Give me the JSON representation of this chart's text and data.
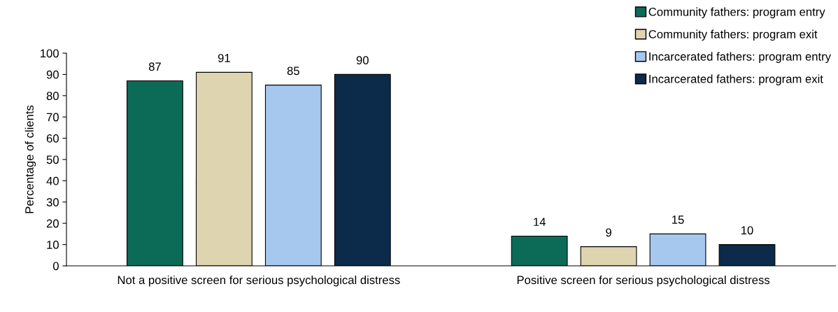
{
  "chart_data": {
    "type": "bar",
    "ylabel": "Percentage of clients",
    "categories": [
      "Not a positive screen for serious psychological distress",
      "Positive screen for serious psychological distress"
    ],
    "series": [
      {
        "name": "Community fathers: program entry",
        "color": "#0b6b57",
        "values": [
          87,
          14
        ]
      },
      {
        "name": "Community fathers: program exit",
        "color": "#ded4b0",
        "values": [
          91,
          9
        ]
      },
      {
        "name": "Incarcerated fathers: program entry",
        "color": "#a6c8ef",
        "values": [
          85,
          15
        ]
      },
      {
        "name": "Incarcerated fathers: program exit",
        "color": "#0c2a4a",
        "values": [
          90,
          10
        ]
      }
    ],
    "ylim": [
      0,
      100
    ],
    "yticks": [
      0,
      10,
      20,
      30,
      40,
      50,
      60,
      70,
      80,
      90,
      100
    ],
    "data_labels": true,
    "grid": false,
    "legend": "top right"
  }
}
